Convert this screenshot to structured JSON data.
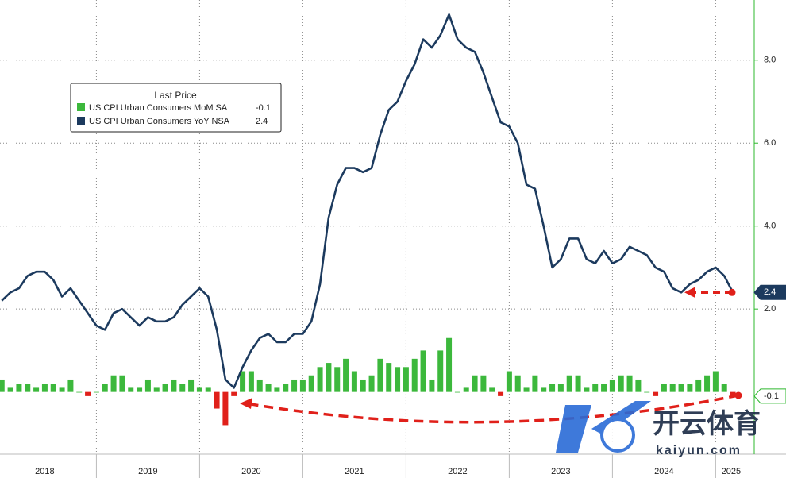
{
  "chart_data": {
    "type": "bar-line",
    "legend_title": "Last Price",
    "x": [
      2018.0833,
      2018.1667,
      2018.25,
      2018.3333,
      2018.4167,
      2018.5,
      2018.5833,
      2018.6667,
      2018.75,
      2018.8333,
      2018.9167,
      2019.0,
      2019.0833,
      2019.1667,
      2019.25,
      2019.3333,
      2019.4167,
      2019.5,
      2019.5833,
      2019.6667,
      2019.75,
      2019.8333,
      2019.9167,
      2020.0,
      2020.0833,
      2020.1667,
      2020.25,
      2020.3333,
      2020.4167,
      2020.5,
      2020.5833,
      2020.6667,
      2020.75,
      2020.8333,
      2020.9167,
      2021.0,
      2021.0833,
      2021.1667,
      2021.25,
      2021.3333,
      2021.4167,
      2021.5,
      2021.5833,
      2021.6667,
      2021.75,
      2021.8333,
      2021.9167,
      2022.0,
      2022.0833,
      2022.1667,
      2022.25,
      2022.3333,
      2022.4167,
      2022.5,
      2022.5833,
      2022.6667,
      2022.75,
      2022.8333,
      2022.9167,
      2023.0,
      2023.0833,
      2023.1667,
      2023.25,
      2023.3333,
      2023.4167,
      2023.5,
      2023.5833,
      2023.6667,
      2023.75,
      2023.8333,
      2023.9167,
      2024.0,
      2024.0833,
      2024.1667,
      2024.25,
      2024.3333,
      2024.4167,
      2024.5,
      2024.5833,
      2024.6667,
      2024.75,
      2024.8333,
      2024.9167,
      2025.0,
      2025.0833,
      2025.1667
    ],
    "series": [
      {
        "name": "US CPI Urban Consumers MoM SA",
        "type": "bar",
        "color": "#3cb83c",
        "negative_color": "#e0201a",
        "values": [
          0.3,
          0.1,
          0.2,
          0.2,
          0.1,
          0.2,
          0.2,
          0.1,
          0.3,
          0.0,
          -0.1,
          0.0,
          0.2,
          0.4,
          0.4,
          0.1,
          0.1,
          0.3,
          0.1,
          0.2,
          0.3,
          0.2,
          0.3,
          0.1,
          0.1,
          -0.4,
          -0.8,
          -0.1,
          0.5,
          0.5,
          0.3,
          0.2,
          0.1,
          0.2,
          0.3,
          0.3,
          0.4,
          0.6,
          0.7,
          0.6,
          0.8,
          0.5,
          0.3,
          0.4,
          0.8,
          0.7,
          0.6,
          0.6,
          0.8,
          1.0,
          0.3,
          1.0,
          1.3,
          0.0,
          0.1,
          0.4,
          0.4,
          0.1,
          -0.1,
          0.5,
          0.4,
          0.1,
          0.4,
          0.1,
          0.2,
          0.2,
          0.4,
          0.4,
          0.1,
          0.2,
          0.2,
          0.3,
          0.4,
          0.4,
          0.3,
          0.0,
          -0.1,
          0.2,
          0.2,
          0.2,
          0.2,
          0.3,
          0.4,
          0.5,
          0.2,
          -0.1
        ]
      },
      {
        "name": "US CPI Urban Consumers YoY NSA",
        "type": "line",
        "color": "#1c3a5e",
        "values": [
          2.2,
          2.4,
          2.5,
          2.8,
          2.9,
          2.9,
          2.7,
          2.3,
          2.5,
          2.2,
          1.9,
          1.6,
          1.5,
          1.9,
          2.0,
          1.8,
          1.6,
          1.8,
          1.7,
          1.7,
          1.8,
          2.1,
          2.3,
          2.5,
          2.3,
          1.5,
          0.3,
          0.1,
          0.6,
          1.0,
          1.3,
          1.4,
          1.2,
          1.2,
          1.4,
          1.4,
          1.7,
          2.6,
          4.2,
          5.0,
          5.4,
          5.4,
          5.3,
          5.4,
          6.2,
          6.8,
          7.0,
          7.5,
          7.9,
          8.5,
          8.3,
          8.6,
          9.1,
          8.5,
          8.3,
          8.2,
          7.7,
          7.1,
          6.5,
          6.4,
          6.0,
          5.0,
          4.9,
          4.0,
          3.0,
          3.2,
          3.7,
          3.7,
          3.2,
          3.1,
          3.4,
          3.1,
          3.2,
          3.5,
          3.4,
          3.3,
          3.0,
          2.9,
          2.5,
          2.4,
          2.6,
          2.7,
          2.9,
          3.0,
          2.8,
          2.4
        ]
      }
    ],
    "xlim": [
      2018.066,
      2025.374
    ],
    "xticks": [
      {
        "value": 2018.5,
        "label": "2018"
      },
      {
        "value": 2019.5,
        "label": "2019"
      },
      {
        "value": 2020.5,
        "label": "2020"
      },
      {
        "value": 2021.5,
        "label": "2021"
      },
      {
        "value": 2022.5,
        "label": "2022"
      },
      {
        "value": 2023.5,
        "label": "2023"
      },
      {
        "value": 2024.5,
        "label": "2024"
      },
      {
        "value": 2025.15,
        "label": "2025"
      }
    ],
    "ylim": [
      -1.5,
      9.45
    ],
    "yticks": [
      {
        "value": 2,
        "label": "2.0"
      },
      {
        "value": 4,
        "label": "4.0"
      },
      {
        "value": 6,
        "label": "6.0"
      },
      {
        "value": 8,
        "label": "8.0"
      }
    ],
    "grid": true,
    "axis_color": "#2db82d",
    "watermark": {
      "text": "开云体育",
      "url": "kaiyun.com"
    }
  }
}
